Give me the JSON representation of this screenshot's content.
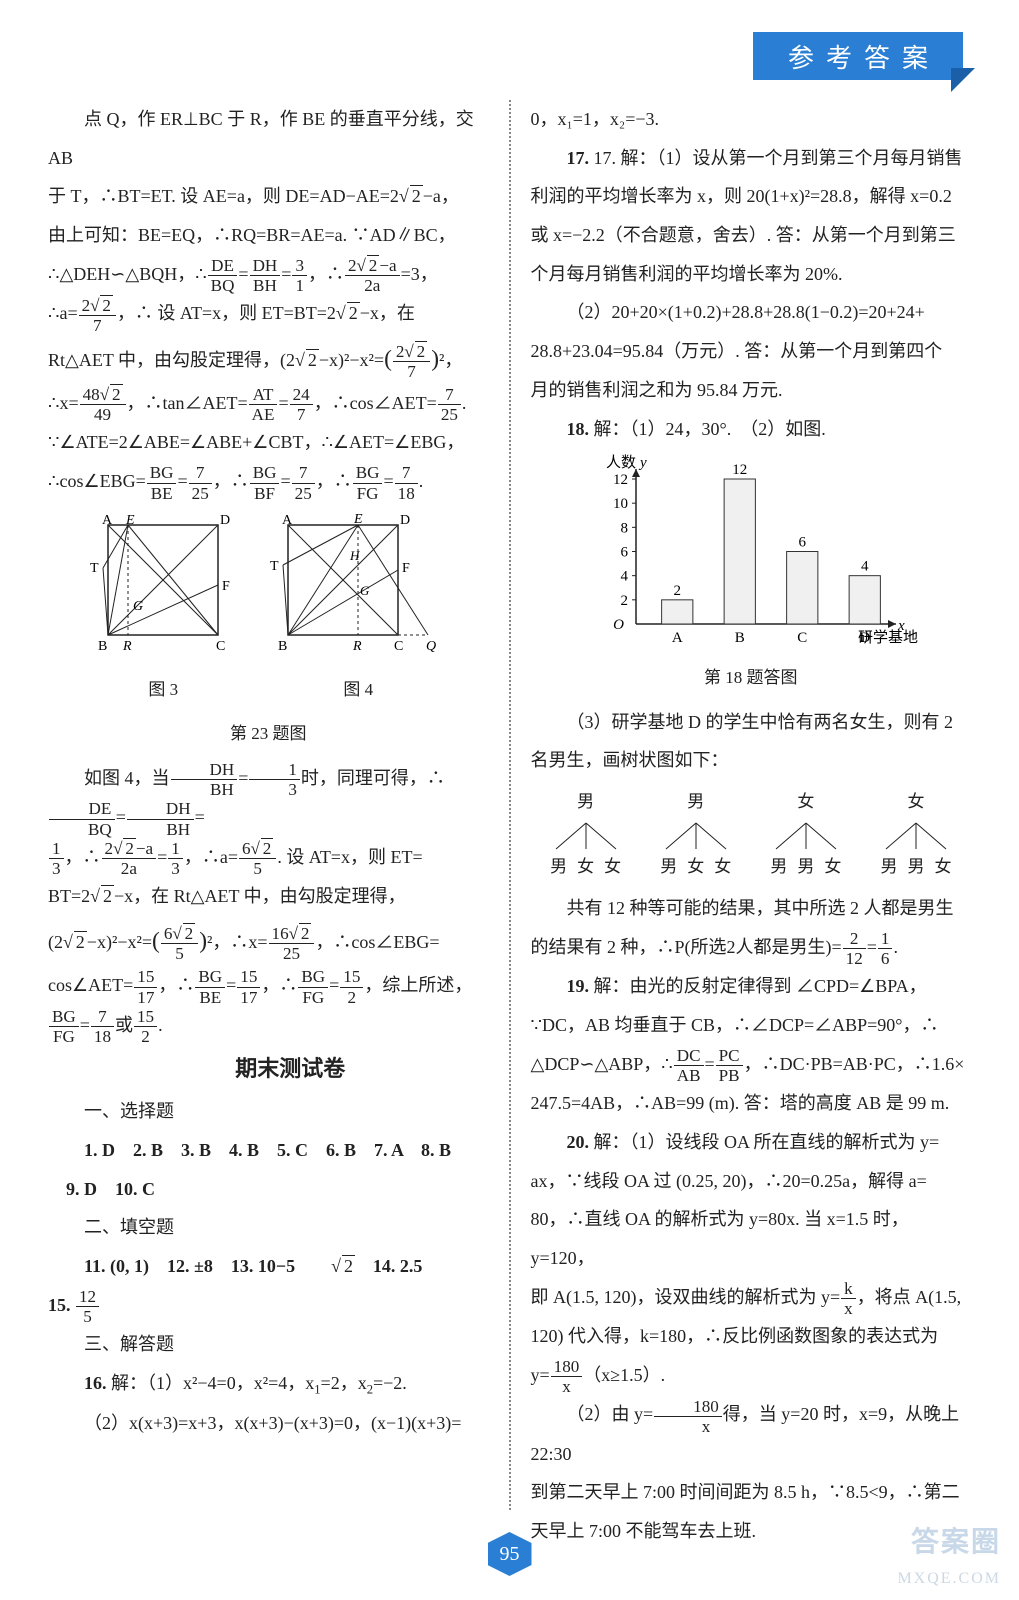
{
  "header": {
    "title": "参考答案"
  },
  "page_number": "95",
  "watermark": {
    "main": "答案圈",
    "sub": "MXQE.COM"
  },
  "left": {
    "p1": "点 Q，作 ER⊥BC 于 R，作 BE 的垂直平分线，交 AB",
    "p2_a": "于 T，∴BT=ET. 设 AE=a，则 DE=AD−AE=2",
    "p2_b": "−a，",
    "p3": "由上可知：BE=EQ，∴RQ=BR=AE=a. ∵AD∥BC，",
    "p13": "∵∠ATE=2∠ABE=∠ABE+∠CBT，∴∠AET=∠EBG，",
    "fig3_caption": "图 3",
    "fig4_caption": "图 4",
    "fig_main_caption": "第 23 题图",
    "section_title": "期末测试卷",
    "sec1_title": "一、选择题",
    "mc": "1. D　2. B　3. B　4. B　5. C　6. B　7. A　8. B",
    "mc2": "9. D　10. C",
    "sec2_title": "二、填空题",
    "fill_1": "11. (0, 1)　12. ±8　13. 10−5",
    "fill_1b": "　14. 2.5",
    "fill_2a": "15. ",
    "sec3_title": "三、解答题",
    "q16_1": "16. 解：（1）x²−4=0，x²=4，x₁=2，x₂=−2.",
    "q16_2": "（2）x(x+3)=x+3，x(x+3)−(x+3)=0，(x−1)(x+3)="
  },
  "right": {
    "p0": "0，x₁=1，x₂=−3.",
    "q17_1a": "17. 解：（1）设从第一个月到第三个月每月销售",
    "q17_1b": "利润的平均增长率为 x，则 20(1+x)²=28.8，解得 x=0.2",
    "q17_1c": "或 x=−2.2（不合题意，舍去）. 答：从第一个月到第三",
    "q17_1d": "个月每月销售利润的平均增长率为 20%.",
    "q17_2a": "（2）20+20×(1+0.2)+28.8+28.8(1−0.2)=20+24+",
    "q17_2b": "28.8+23.04=95.84（万元）. 答：从第一个月到第四个",
    "q17_2c": "月的销售利润之和为 95.84 万元.",
    "q18_1": "18. 解：（1）24，30°.　（2）如图.",
    "chart_caption": "第 18 题答图",
    "q18_3a": "（3）研学基地 D 的学生中恰有两名女生，则有 2",
    "q18_3b": "名男生，画树状图如下：",
    "tree_tops": [
      "男",
      "男",
      "女",
      "女"
    ],
    "tree_bots": [
      [
        "男",
        "女",
        "女"
      ],
      [
        "男",
        "女",
        "女"
      ],
      [
        "男",
        "男",
        "女"
      ],
      [
        "男",
        "男",
        "女"
      ]
    ],
    "q18_3c": "共有 12 种等可能的结果，其中所选 2 人都是男生",
    "q19a": "19. 解：由光的反射定律得到 ∠CPD=∠BPA，",
    "q19b": "∵DC，AB 均垂直于 CB，∴∠DCP=∠ABP=90°，∴",
    "q19d": "247.5=4AB，∴AB=99 (m). 答：塔的高度 AB 是 99 m.",
    "q20a": "20. 解：（1）设线段 OA 所在直线的解析式为 y=",
    "q20b": "ax，∵线段 OA 过 (0.25, 20)，∴20=0.25a，解得 a=",
    "q20c": "80，∴直线 OA 的解析式为 y=80x. 当 x=1.5 时，y=120，",
    "q20f": "120) 代入得，k=180，∴反比例函数图象的表达式为",
    "q20_2b": "到第二天早上 7:00 时间间距为 8.5 h，∵8.5<9，∴第二",
    "q20_2c": "天早上 7:00 不能驾车去上班."
  },
  "chart": {
    "type": "bar",
    "ylabel": "人数",
    "y_sym": "y",
    "xlabel": "研学基地",
    "x_sym": "x",
    "categories": [
      "A",
      "B",
      "C",
      "D"
    ],
    "values": [
      2,
      12,
      6,
      4
    ],
    "ylim": [
      0,
      12
    ],
    "yticks": [
      2,
      4,
      6,
      8,
      10,
      12
    ],
    "bar_fill": "#f0f0f0",
    "bar_stroke": "#333333",
    "axis_color": "#222222",
    "label_fontsize": 15,
    "value_fontsize": 15,
    "bar_width": 0.5
  },
  "geometry_figs": {
    "fig3": {
      "pts": [
        "A",
        "E",
        "D",
        "T",
        "G",
        "F",
        "B",
        "R",
        "C"
      ]
    },
    "fig4": {
      "pts": [
        "A",
        "E",
        "D",
        "T",
        "H",
        "F",
        "G",
        "B",
        "R",
        "C",
        "Q"
      ]
    }
  }
}
